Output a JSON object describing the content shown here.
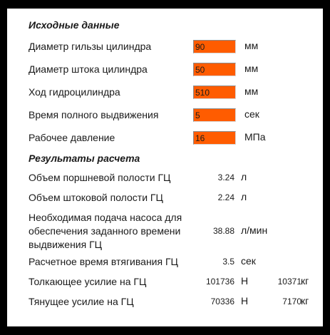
{
  "input_section": {
    "title": "Исходные данные",
    "rows": [
      {
        "label": "Диаметр гильзы цилиндра",
        "value": "90",
        "unit": "мм"
      },
      {
        "label": "Диаметр штока цилиндра",
        "value": "50",
        "unit": "мм"
      },
      {
        "label": "Ход гидроцилиндра",
        "value": "510",
        "unit": "мм"
      },
      {
        "label": "Время полного выдвижения",
        "value": "5",
        "unit": "сек"
      },
      {
        "label": "Рабочее давление",
        "value": "16",
        "unit": "МПа"
      }
    ]
  },
  "results_section": {
    "title": "Результаты расчета",
    "rows": [
      {
        "label": "Объем поршневой полости ГЦ",
        "value": "3.24",
        "unit": "л"
      },
      {
        "label": "Объем штоковой полости ГЦ",
        "value": "2.24",
        "unit": "л"
      },
      {
        "label_lines": [
          "Необходимая подача насоса для",
          "обеспечения заданного времени",
          "выдвижения ГЦ"
        ],
        "value": "38.88",
        "unit": "л/мин"
      },
      {
        "label": "Расчетное время втягивания ГЦ",
        "value": "3.5",
        "unit": "сек"
      },
      {
        "label": "Толкающее усилие на ГЦ",
        "value": "101736",
        "unit": "Н",
        "value2": "10371",
        "unit2": "кг"
      },
      {
        "label": "Тянущее усилие на ГЦ",
        "value": "70336",
        "unit": "Н",
        "value2": "7170",
        "unit2": "кг"
      }
    ]
  },
  "colors": {
    "input_background": "#ff5c00",
    "frame": "#000000",
    "panel": "#ffffff"
  }
}
